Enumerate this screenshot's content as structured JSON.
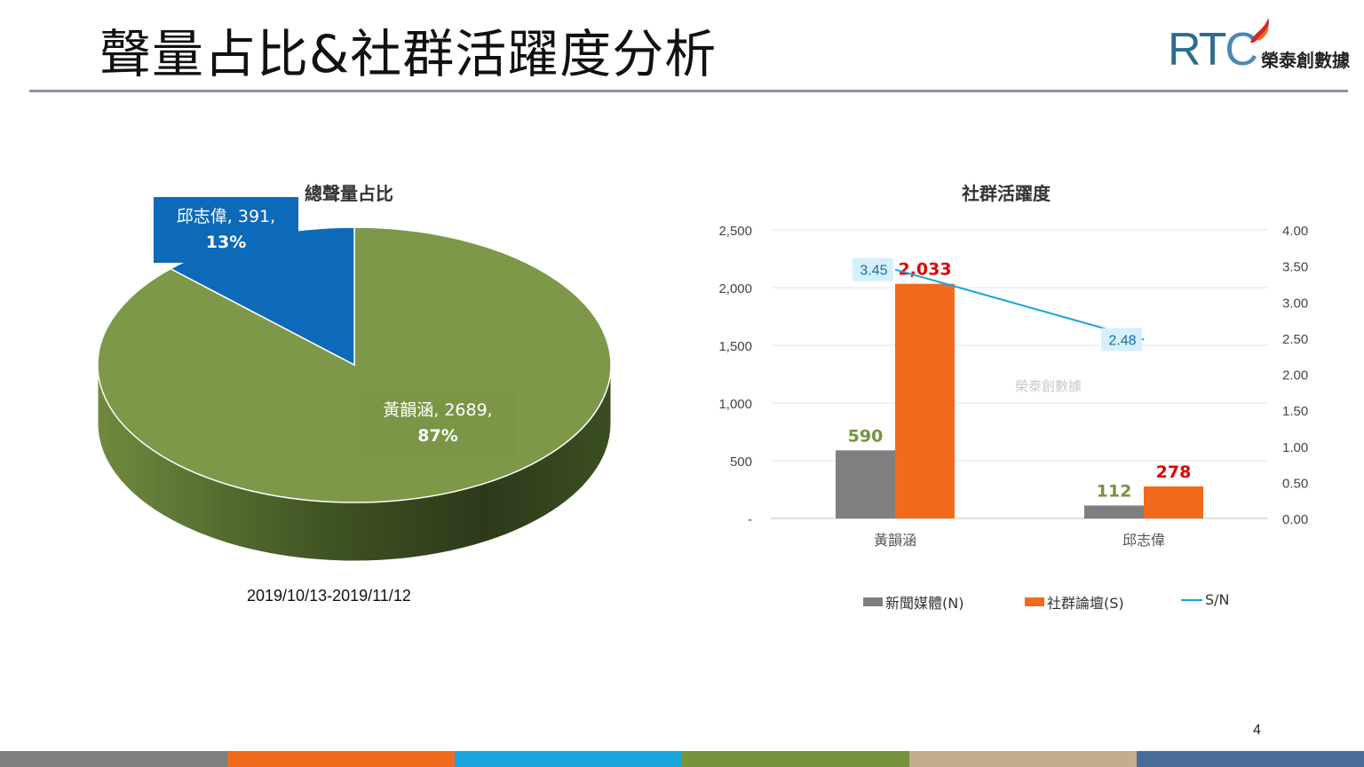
{
  "slide": {
    "title": "聲量占比&社群活躍度分析",
    "page_number": "4",
    "logo": {
      "letters_rt": "RT",
      "letter_c": "C",
      "company": "榮泰創數據"
    },
    "footer_colors": [
      "#7f7f7f",
      "#f26b1d",
      "#1ba5dd",
      "#77933c",
      "#c4ad8e",
      "#4a6c9b"
    ]
  },
  "chart_data": [
    {
      "type": "pie",
      "title": "總聲量占比",
      "date_range": "2019/10/13-2019/11/12",
      "slices": [
        {
          "name": "黃韻涵",
          "value": 2689,
          "percent": "87%",
          "label": "黃韻涵, 2689,",
          "label_pct": "87%",
          "color": "#7d9848"
        },
        {
          "name": "邱志偉",
          "value": 391,
          "percent": "13%",
          "label": "邱志偉, 391,",
          "label_pct": "13%",
          "color": "#0d6ab8"
        }
      ]
    },
    {
      "type": "bar",
      "title": "社群活躍度",
      "categories": [
        "黃韻涵",
        "邱志偉"
      ],
      "series": [
        {
          "name": "新聞媒體(N)",
          "values": [
            590,
            112
          ],
          "value_labels": [
            "590",
            "112"
          ],
          "color": "#7f7f7f",
          "label_color": "#77933c"
        },
        {
          "name": "社群論壇(S)",
          "values": [
            2033,
            278
          ],
          "value_labels": [
            "2,033",
            "278"
          ],
          "color": "#f26b1d",
          "label_color": "#e00000"
        },
        {
          "name": "S/N",
          "type": "line",
          "axis": "right",
          "values": [
            3.45,
            2.48
          ],
          "value_labels": [
            "3.45",
            "2.48"
          ],
          "color": "#1ba5dd"
        }
      ],
      "left_axis": {
        "min": 0,
        "max": 2500,
        "ticks": [
          "-",
          "500",
          "1,000",
          "1,500",
          "2,000",
          "2,500"
        ]
      },
      "right_axis": {
        "min": 0,
        "max": 4,
        "ticks": [
          "0.00",
          "0.50",
          "1.00",
          "1.50",
          "2.00",
          "2.50",
          "3.00",
          "3.50",
          "4.00"
        ]
      },
      "grid": true,
      "legend_position": "bottom",
      "watermark": "榮泰創數據"
    }
  ]
}
